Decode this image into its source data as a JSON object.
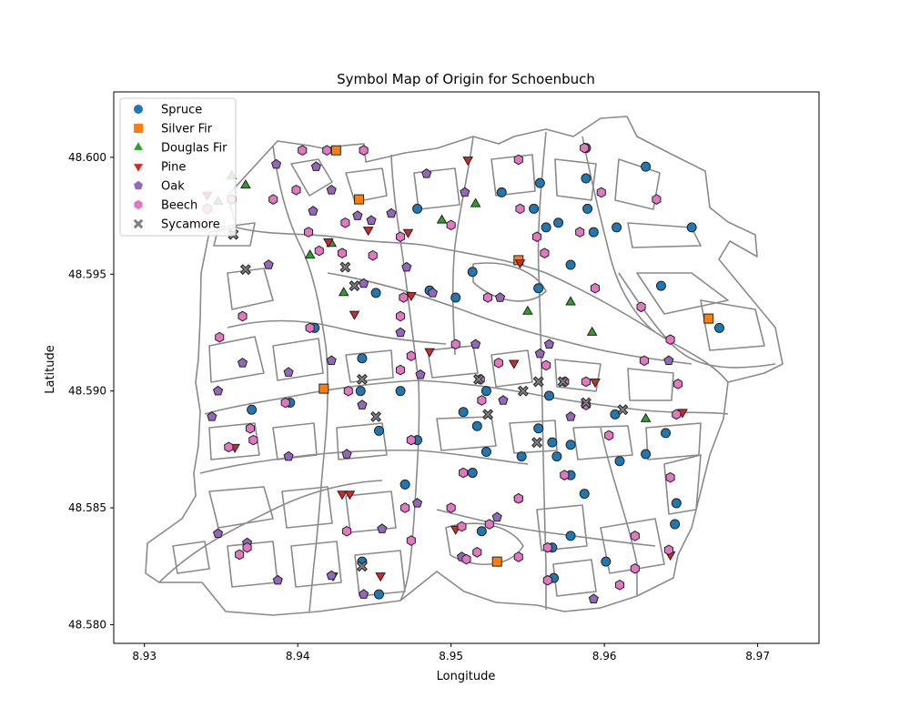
{
  "chart_data": {
    "type": "scatter",
    "title": "Symbol Map of Origin for Schoenbuch",
    "xlabel": "Longitude",
    "ylabel": "Latitude",
    "xlim": [
      8.928,
      8.974
    ],
    "ylim": [
      48.5792,
      48.6028
    ],
    "x_ticks": [
      8.93,
      8.94,
      8.95,
      8.96,
      8.97
    ],
    "x_tick_labels": [
      "8.93",
      "8.94",
      "8.95",
      "8.96",
      "8.97"
    ],
    "y_ticks": [
      48.58,
      48.585,
      48.59,
      48.595,
      48.6
    ],
    "y_tick_labels": [
      "48.580",
      "48.585",
      "48.590",
      "48.595",
      "48.600"
    ],
    "grid": false,
    "legend_position": "top-left",
    "series": [
      {
        "name": "Spruce",
        "marker": "circle",
        "color": "#1f77b4",
        "points": [
          [
            8.9588,
            48.6004
          ],
          [
            8.9627,
            48.5996
          ],
          [
            8.9588,
            48.5991
          ],
          [
            8.9558,
            48.5989
          ],
          [
            8.9533,
            48.5985
          ],
          [
            8.9478,
            48.5978
          ],
          [
            8.9554,
            48.5978
          ],
          [
            8.9589,
            48.5978
          ],
          [
            8.957,
            48.5972
          ],
          [
            8.9562,
            48.597
          ],
          [
            8.9593,
            48.5968
          ],
          [
            8.9608,
            48.597
          ],
          [
            8.9657,
            48.597
          ],
          [
            8.9514,
            48.5951
          ],
          [
            8.9578,
            48.5954
          ],
          [
            8.9557,
            48.5944
          ],
          [
            8.9637,
            48.5945
          ],
          [
            8.9451,
            48.5942
          ],
          [
            8.9486,
            48.5943
          ],
          [
            8.9503,
            48.594
          ],
          [
            8.9411,
            48.5927
          ],
          [
            8.9675,
            48.5927
          ],
          [
            8.9442,
            48.5914
          ],
          [
            8.937,
            48.5892
          ],
          [
            8.9395,
            48.5895
          ],
          [
            8.9441,
            48.59
          ],
          [
            8.9467,
            48.59
          ],
          [
            8.9523,
            48.59
          ],
          [
            8.9564,
            48.5898
          ],
          [
            8.9508,
            48.5891
          ],
          [
            8.9607,
            48.589
          ],
          [
            8.9517,
            48.5885
          ],
          [
            8.9557,
            48.5884
          ],
          [
            8.9453,
            48.5883
          ],
          [
            8.964,
            48.5882
          ],
          [
            8.9478,
            48.5879
          ],
          [
            8.9566,
            48.5878
          ],
          [
            8.9578,
            48.5877
          ],
          [
            8.9523,
            48.5874
          ],
          [
            8.9627,
            48.5873
          ],
          [
            8.9546,
            48.5872
          ],
          [
            8.9569,
            48.5872
          ],
          [
            8.961,
            48.587
          ],
          [
            8.9514,
            48.5865
          ],
          [
            8.9578,
            48.5864
          ],
          [
            8.947,
            48.586
          ],
          [
            8.9587,
            48.5856
          ],
          [
            8.9647,
            48.5852
          ],
          [
            8.9646,
            48.5843
          ],
          [
            8.9578,
            48.5838
          ],
          [
            8.952,
            48.584
          ],
          [
            8.9601,
            48.5827
          ],
          [
            8.9442,
            48.5827
          ],
          [
            8.9566,
            48.5833
          ],
          [
            8.9567,
            48.582
          ],
          [
            8.9453,
            48.5813
          ]
        ]
      },
      {
        "name": "Silver Fir",
        "marker": "square",
        "color": "#ff7f0e",
        "points": [
          [
            8.9425,
            48.6003
          ],
          [
            8.944,
            48.5982
          ],
          [
            8.9544,
            48.5956
          ],
          [
            8.9668,
            48.5931
          ],
          [
            8.9417,
            48.5901
          ],
          [
            8.953,
            48.5827
          ]
        ]
      },
      {
        "name": "Douglas Fir",
        "marker": "triangle-up",
        "color": "#2ca02c",
        "points": [
          [
            8.9357,
            48.5992
          ],
          [
            8.9366,
            48.5988
          ],
          [
            8.9348,
            48.5981
          ],
          [
            8.9516,
            48.598
          ],
          [
            8.9494,
            48.5973
          ],
          [
            8.9422,
            48.5963
          ],
          [
            8.9408,
            48.5958
          ],
          [
            8.943,
            48.5942
          ],
          [
            8.955,
            48.5934
          ],
          [
            8.9578,
            48.5938
          ],
          [
            8.9592,
            48.5925
          ],
          [
            8.9627,
            48.5888
          ]
        ]
      },
      {
        "name": "Pine",
        "marker": "triangle-down",
        "color": "#d62728",
        "points": [
          [
            8.9511,
            48.5999
          ],
          [
            8.9341,
            48.5984
          ],
          [
            8.9446,
            48.5969
          ],
          [
            8.9472,
            48.5968
          ],
          [
            8.942,
            48.5964
          ],
          [
            8.9545,
            48.5955
          ],
          [
            8.9474,
            48.5941
          ],
          [
            8.9437,
            48.5933
          ],
          [
            8.9486,
            48.5917
          ],
          [
            8.9541,
            48.5912
          ],
          [
            8.9594,
            48.5904
          ],
          [
            8.9651,
            48.5891
          ],
          [
            8.9359,
            48.5876
          ],
          [
            8.9429,
            48.5856
          ],
          [
            8.9434,
            48.5856
          ],
          [
            8.9503,
            48.5841
          ],
          [
            8.9643,
            48.583
          ],
          [
            8.9423,
            48.5821
          ],
          [
            8.9454,
            48.5821
          ]
        ]
      },
      {
        "name": "Oak",
        "marker": "pentagon",
        "color": "#9467bd",
        "points": [
          [
            8.9386,
            48.5997
          ],
          [
            8.9412,
            48.5996
          ],
          [
            8.9484,
            48.5993
          ],
          [
            8.9422,
            48.5986
          ],
          [
            8.9509,
            48.5985
          ],
          [
            8.941,
            48.5977
          ],
          [
            8.9439,
            48.5975
          ],
          [
            8.9461,
            48.5976
          ],
          [
            8.9448,
            48.5973
          ],
          [
            8.9381,
            48.5954
          ],
          [
            8.9471,
            48.5953
          ],
          [
            8.9443,
            48.5946
          ],
          [
            8.9488,
            48.5942
          ],
          [
            8.9532,
            48.594
          ],
          [
            8.9467,
            48.5925
          ],
          [
            8.9516,
            48.592
          ],
          [
            8.9564,
            48.592
          ],
          [
            8.9558,
            48.5916
          ],
          [
            8.9642,
            48.5913
          ],
          [
            8.9364,
            48.5912
          ],
          [
            8.9422,
            48.5913
          ],
          [
            8.9394,
            48.5908
          ],
          [
            8.948,
            48.5907
          ],
          [
            8.9348,
            48.59
          ],
          [
            8.9442,
            48.5894
          ],
          [
            8.9534,
            48.5896
          ],
          [
            8.9344,
            48.5889
          ],
          [
            8.9578,
            48.5889
          ],
          [
            8.9394,
            48.5872
          ],
          [
            8.9432,
            48.5873
          ],
          [
            8.9478,
            48.5852
          ],
          [
            8.953,
            48.5846
          ],
          [
            8.9544,
            48.5854
          ],
          [
            8.9348,
            48.5839
          ],
          [
            8.9455,
            48.5841
          ],
          [
            8.9367,
            48.5835
          ],
          [
            8.9507,
            48.5829
          ],
          [
            8.9387,
            48.5819
          ],
          [
            8.9422,
            48.5821
          ],
          [
            8.9443,
            48.5813
          ],
          [
            8.9593,
            48.5811
          ]
        ]
      },
      {
        "name": "Beech",
        "marker": "hexagon",
        "color": "#e377c2",
        "points": [
          [
            8.9403,
            48.6003
          ],
          [
            8.9419,
            48.6003
          ],
          [
            8.9443,
            48.6003
          ],
          [
            8.9587,
            48.6004
          ],
          [
            8.9544,
            48.5999
          ],
          [
            8.9399,
            48.5986
          ],
          [
            8.9598,
            48.5985
          ],
          [
            8.9384,
            48.5982
          ],
          [
            8.9357,
            48.5982
          ],
          [
            8.9634,
            48.5982
          ],
          [
            8.9341,
            48.5978
          ],
          [
            8.9545,
            48.5978
          ],
          [
            8.9407,
            48.5968
          ],
          [
            8.9431,
            48.5972
          ],
          [
            8.95,
            48.5971
          ],
          [
            8.9467,
            48.5966
          ],
          [
            8.9556,
            48.5966
          ],
          [
            8.9584,
            48.5968
          ],
          [
            8.9414,
            48.596
          ],
          [
            8.9429,
            48.5959
          ],
          [
            8.9449,
            48.5958
          ],
          [
            8.9561,
            48.5959
          ],
          [
            8.9594,
            48.5944
          ],
          [
            8.9524,
            48.594
          ],
          [
            8.9469,
            48.594
          ],
          [
            8.9364,
            48.5932
          ],
          [
            8.9467,
            48.5932
          ],
          [
            8.9624,
            48.5936
          ],
          [
            8.9408,
            48.5927
          ],
          [
            8.9349,
            48.5923
          ],
          [
            8.9643,
            48.5922
          ],
          [
            8.9474,
            48.5915
          ],
          [
            8.9503,
            48.592
          ],
          [
            8.9531,
            48.5912
          ],
          [
            8.9562,
            48.5911
          ],
          [
            8.9626,
            48.5913
          ],
          [
            8.9467,
            48.5909
          ],
          [
            8.9519,
            48.5905
          ],
          [
            8.9574,
            48.5904
          ],
          [
            8.9588,
            48.5904
          ],
          [
            8.9433,
            48.59
          ],
          [
            8.9392,
            48.5895
          ],
          [
            8.9648,
            48.5903
          ],
          [
            8.952,
            48.5896
          ],
          [
            8.9588,
            48.5894
          ],
          [
            8.9647,
            48.589
          ],
          [
            8.9369,
            48.5884
          ],
          [
            8.9355,
            48.5876
          ],
          [
            8.9371,
            48.5879
          ],
          [
            8.9474,
            48.5879
          ],
          [
            8.9603,
            48.5881
          ],
          [
            8.9508,
            48.5865
          ],
          [
            8.9574,
            48.5864
          ],
          [
            8.9643,
            48.5863
          ],
          [
            8.9544,
            48.5854
          ],
          [
            8.947,
            48.585
          ],
          [
            8.95,
            48.585
          ],
          [
            8.9367,
            48.5833
          ],
          [
            8.9432,
            48.584
          ],
          [
            8.9525,
            48.5843
          ],
          [
            8.962,
            48.5838
          ],
          [
            8.9507,
            48.5842
          ],
          [
            8.9517,
            48.5831
          ],
          [
            8.9474,
            48.5836
          ],
          [
            8.9362,
            48.583
          ],
          [
            8.951,
            48.5828
          ],
          [
            8.9544,
            48.5829
          ],
          [
            8.9563,
            48.5833
          ],
          [
            8.962,
            48.5824
          ],
          [
            8.9642,
            48.5832
          ],
          [
            8.9563,
            48.5819
          ],
          [
            8.961,
            48.5817
          ]
        ]
      },
      {
        "name": "Sycamore",
        "marker": "x-filled",
        "color": "#7f7f7f",
        "points": [
          [
            8.9358,
            48.5967
          ],
          [
            8.9366,
            48.5952
          ],
          [
            8.9431,
            48.5953
          ],
          [
            8.9437,
            48.5945
          ],
          [
            8.9442,
            48.5905
          ],
          [
            8.9518,
            48.5905
          ],
          [
            8.9557,
            48.5904
          ],
          [
            8.9573,
            48.5904
          ],
          [
            8.9547,
            48.59
          ],
          [
            8.9451,
            48.5889
          ],
          [
            8.9524,
            48.589
          ],
          [
            8.9588,
            48.5895
          ],
          [
            8.9612,
            48.5892
          ],
          [
            8.9556,
            48.5878
          ],
          [
            8.9442,
            48.5825
          ]
        ]
      }
    ]
  }
}
